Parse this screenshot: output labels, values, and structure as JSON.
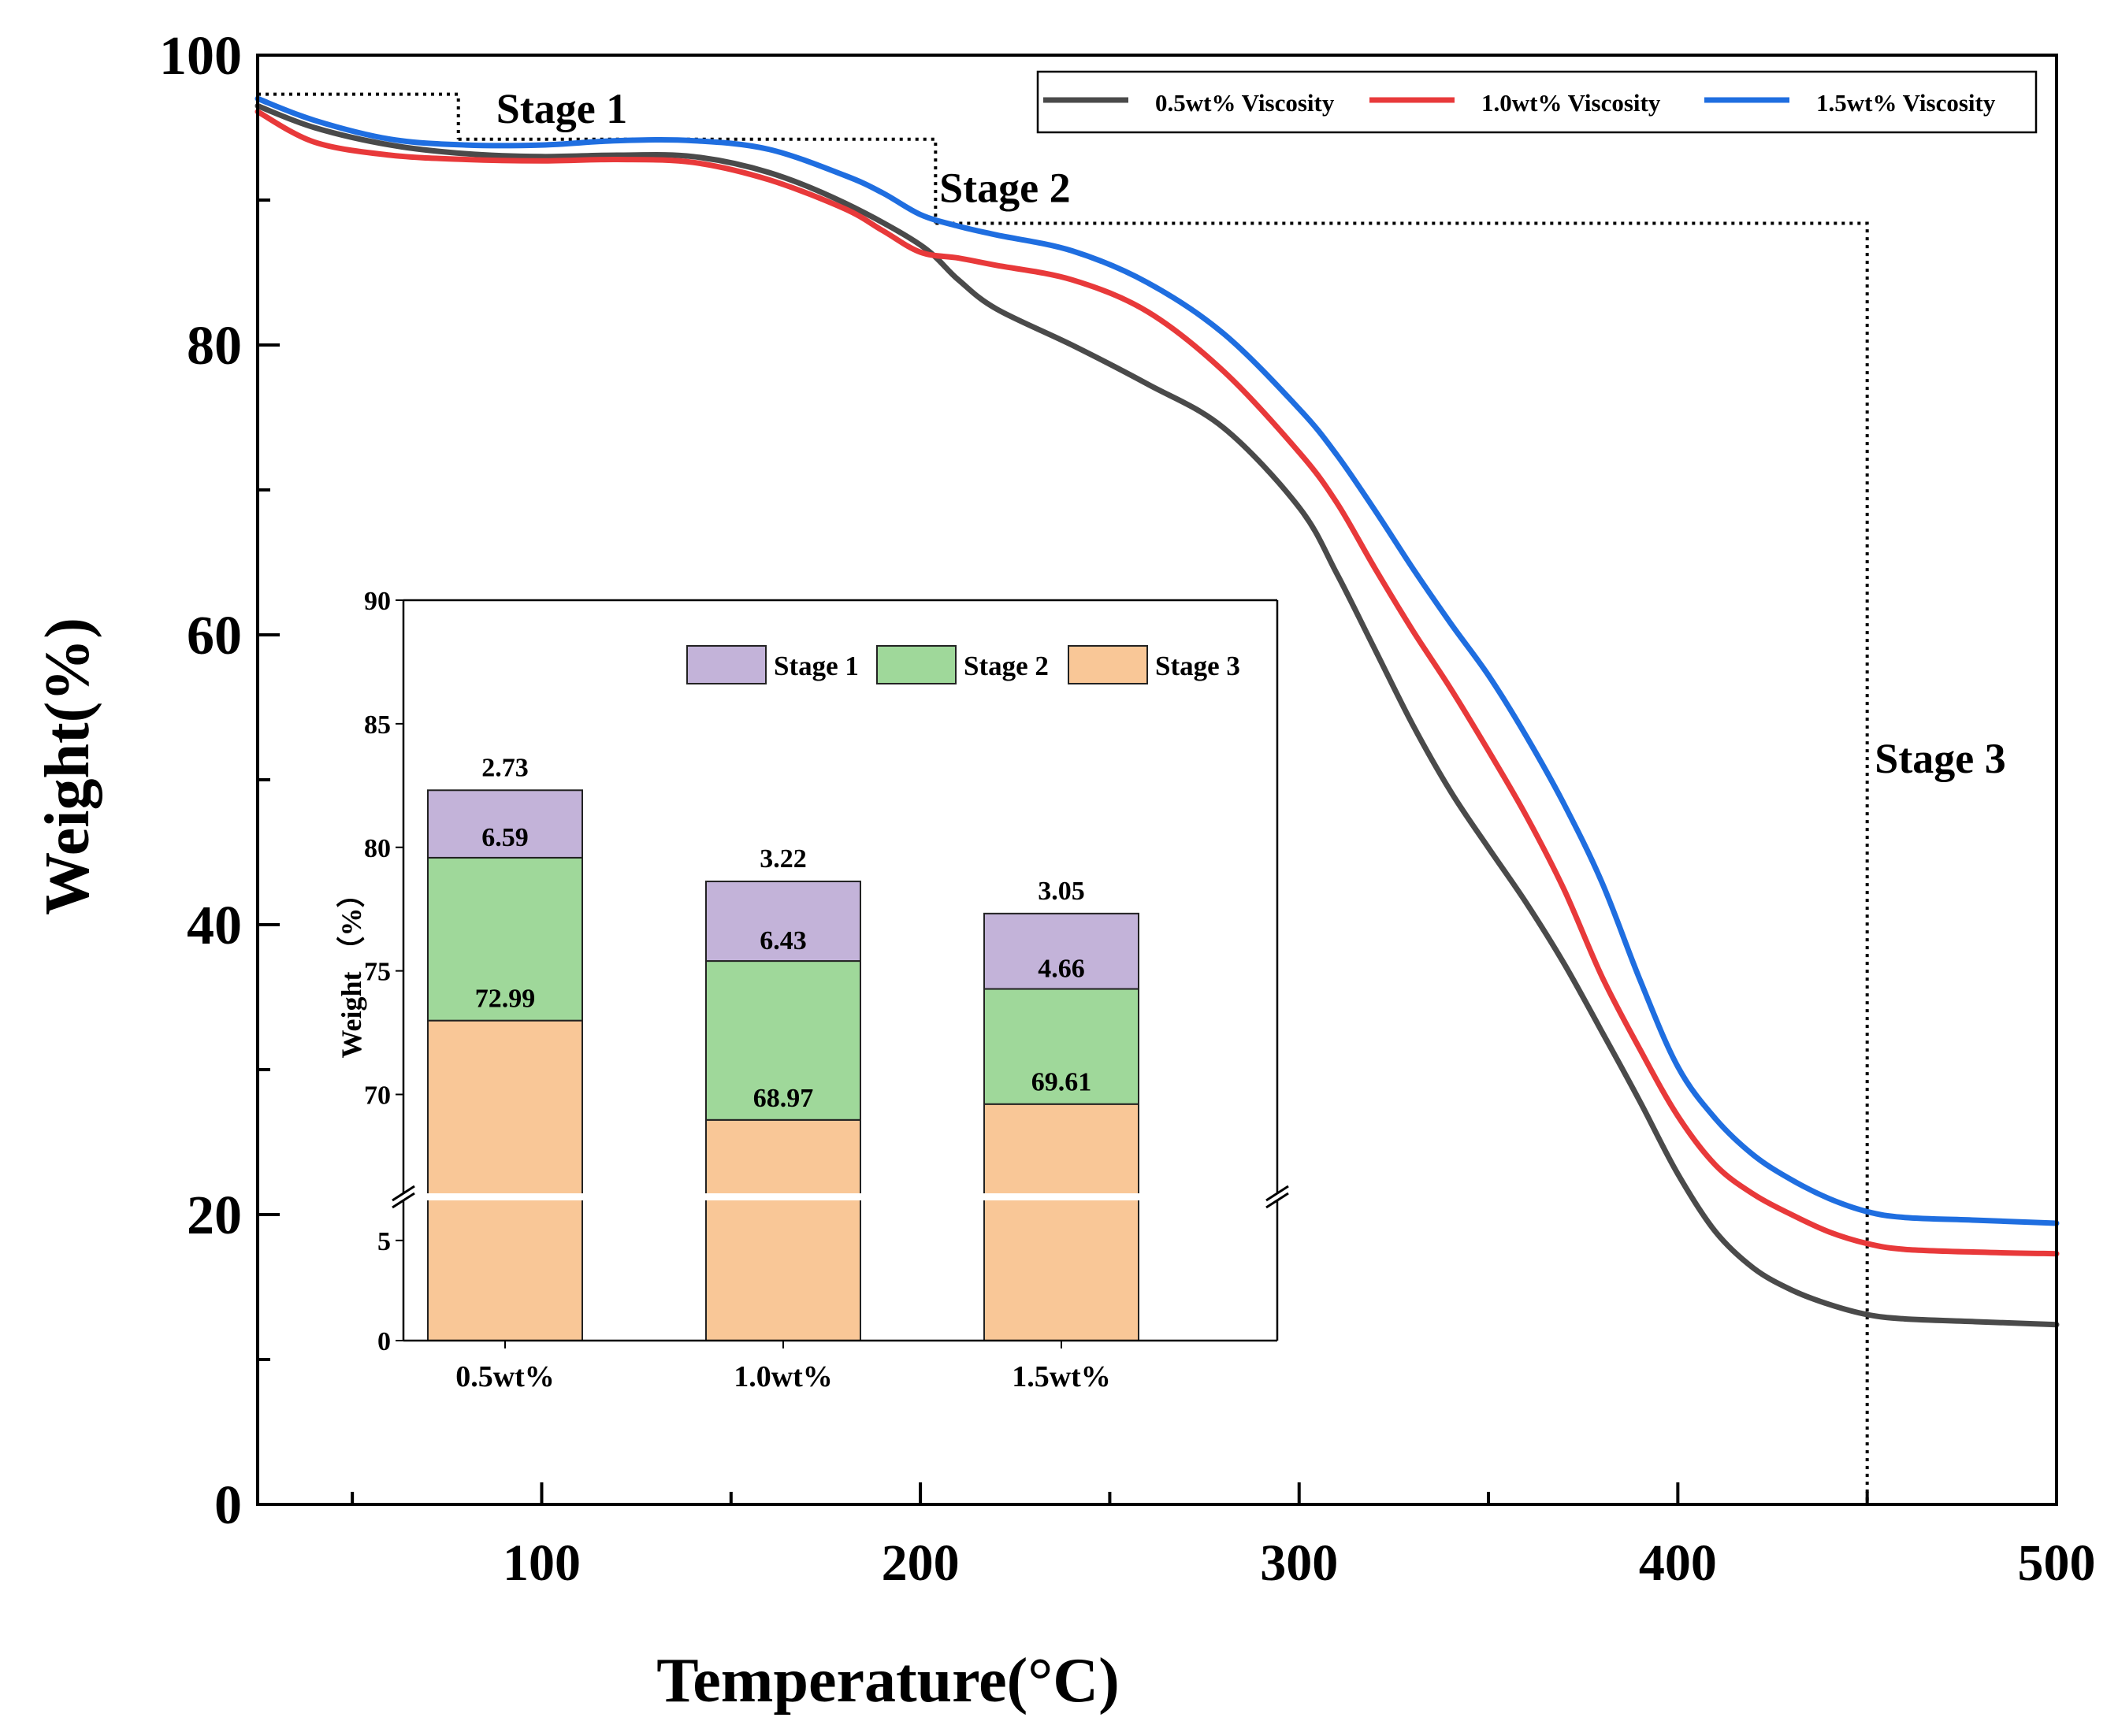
{
  "chart_data": [
    {
      "type": "line",
      "title": "",
      "xlabel": "Temperature(°C)",
      "ylabel": "Weight(%)",
      "xlim": [
        25,
        500
      ],
      "ylim": [
        0,
        100
      ],
      "x_ticks": [
        100,
        200,
        300,
        400,
        500
      ],
      "y_ticks": [
        0,
        20,
        40,
        60,
        80,
        100
      ],
      "legend_position": "top-right",
      "series": [
        {
          "name": "0.5wt% Viscosity",
          "color": "#4a4a4a",
          "x": [
            25,
            40,
            60,
            80,
            100,
            120,
            140,
            160,
            180,
            200,
            210,
            220,
            240,
            260,
            280,
            300,
            310,
            320,
            330,
            340,
            350,
            360,
            370,
            380,
            390,
            400,
            410,
            420,
            430,
            440,
            450,
            460,
            480,
            500
          ],
          "y": [
            96.5,
            95.0,
            93.8,
            93.2,
            93.0,
            93.1,
            93.0,
            91.9,
            89.8,
            86.9,
            84.5,
            82.5,
            80.0,
            77.3,
            74.3,
            68.8,
            64.2,
            59.0,
            53.8,
            49.2,
            45.3,
            41.5,
            37.3,
            32.6,
            27.8,
            22.8,
            18.8,
            16.3,
            14.8,
            13.8,
            13.1,
            12.8,
            12.6,
            12.4
          ]
        },
        {
          "name": "1.0wt% Viscosity",
          "color": "#e8393a",
          "x": [
            25,
            40,
            60,
            80,
            100,
            120,
            140,
            160,
            180,
            190,
            200,
            210,
            220,
            240,
            260,
            280,
            300,
            310,
            320,
            330,
            340,
            350,
            360,
            370,
            380,
            390,
            400,
            410,
            420,
            430,
            440,
            450,
            460,
            480,
            500
          ],
          "y": [
            96.1,
            94.0,
            93.1,
            92.8,
            92.7,
            92.8,
            92.6,
            91.4,
            89.4,
            87.9,
            86.4,
            86.0,
            85.5,
            84.5,
            82.3,
            78.2,
            72.6,
            69.1,
            64.6,
            60.3,
            56.3,
            52.0,
            47.5,
            42.4,
            36.4,
            31.4,
            26.8,
            23.4,
            21.4,
            20.0,
            18.8,
            18.0,
            17.6,
            17.4,
            17.3
          ]
        },
        {
          "name": "1.5wt% Viscosity",
          "color": "#1f6ee0",
          "x": [
            25,
            40,
            60,
            80,
            100,
            120,
            140,
            160,
            180,
            190,
            200,
            210,
            220,
            240,
            260,
            280,
            300,
            310,
            320,
            330,
            340,
            350,
            360,
            370,
            380,
            390,
            400,
            410,
            420,
            430,
            440,
            450,
            460,
            480,
            500
          ],
          "y": [
            97.0,
            95.5,
            94.2,
            93.8,
            93.8,
            94.1,
            94.1,
            93.5,
            91.7,
            90.5,
            89.0,
            88.2,
            87.6,
            86.5,
            84.3,
            80.8,
            75.6,
            72.4,
            68.6,
            64.6,
            60.8,
            57.2,
            53.0,
            48.3,
            42.9,
            36.2,
            30.2,
            26.6,
            24.1,
            22.4,
            21.1,
            20.2,
            19.8,
            19.6,
            19.4
          ]
        }
      ],
      "annotations": [
        {
          "text": "Stage 1",
          "box": {
            "x": [
              25,
              78
            ],
            "y_top": 97.3
          }
        },
        {
          "text": "Stage 2",
          "box": {
            "x": [
              78,
              204
            ],
            "y_top": 94.2
          }
        },
        {
          "text": "Stage 3",
          "box": {
            "x": [
              204,
              450
            ],
            "y_top": 88.4
          }
        }
      ]
    },
    {
      "type": "bar",
      "subtype": "stacked",
      "title": "",
      "xlabel": "",
      "ylabel": "Weight （%）",
      "categories": [
        "0.5wt%",
        "1.0wt%",
        "1.5wt%"
      ],
      "ylim": [
        0,
        90
      ],
      "axis_break": {
        "from": 7,
        "to": 66
      },
      "y_ticks": [
        0,
        5,
        70,
        75,
        80,
        85,
        90
      ],
      "legend_position": "top-right",
      "series": [
        {
          "name": "Stage 3",
          "color": "#f9c797",
          "values": [
            72.99,
            68.97,
            69.61
          ]
        },
        {
          "name": "Stage 2",
          "color": "#9fd89a",
          "values": [
            6.59,
            6.43,
            4.66
          ]
        },
        {
          "name": "Stage 1",
          "color": "#c3b3d9",
          "values": [
            2.73,
            3.22,
            3.05
          ]
        }
      ]
    }
  ]
}
